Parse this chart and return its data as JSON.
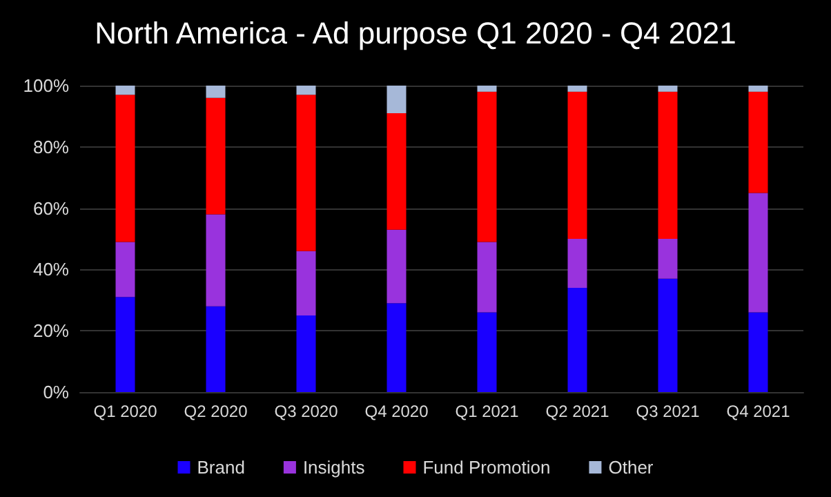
{
  "chart_data": {
    "type": "bar",
    "title": "North America - Ad purpose Q1 2020 - Q4 2021",
    "categories": [
      "Q1 2020",
      "Q2 2020",
      "Q3 2020",
      "Q4 2020",
      "Q1 2021",
      "Q2 2021",
      "Q3 2021",
      "Q4 2021"
    ],
    "series": [
      {
        "name": "Brand",
        "color": "#1a00ff",
        "values": [
          31,
          28,
          25,
          29,
          26,
          34,
          37,
          26
        ]
      },
      {
        "name": "Insights",
        "color": "#9933dd",
        "values": [
          18,
          30,
          21,
          24,
          23,
          16,
          13,
          39
        ]
      },
      {
        "name": "Fund Promotion",
        "color": "#ff0000",
        "values": [
          48,
          38,
          51,
          38,
          49,
          48,
          48,
          33
        ]
      },
      {
        "name": "Other",
        "color": "#a6b8d8",
        "values": [
          3,
          4,
          3,
          9,
          2,
          2,
          2,
          2
        ]
      }
    ],
    "stacked": true,
    "ylim": [
      0,
      100
    ],
    "yticks": [
      {
        "value": 0,
        "label": "0%"
      },
      {
        "value": 20,
        "label": "20%"
      },
      {
        "value": 40,
        "label": "40%"
      },
      {
        "value": 60,
        "label": "60%"
      },
      {
        "value": 80,
        "label": "80%"
      },
      {
        "value": 100,
        "label": "100%"
      }
    ],
    "grid": "y",
    "legend": "bottom"
  }
}
